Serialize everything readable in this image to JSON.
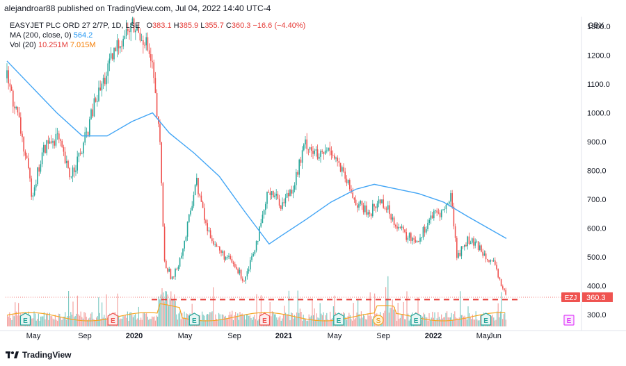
{
  "header": {
    "published": "alejandroar88 published on TradingView.com, Jul 04, 2022 14:40 UTC-4"
  },
  "legend": {
    "symbol": "EASYJET PLC ORD 27 2/7P, 1D, LSE",
    "o_label": "O",
    "o": "383.1",
    "h_label": "H",
    "h": "385.9",
    "l_label": "L",
    "l": "355.7",
    "c_label": "C",
    "c": "360.3",
    "change": "−16.6 (−4.40%)",
    "ma_label": "MA (200, close, 0)",
    "ma_value": "564.2",
    "vol_label": "Vol (20)",
    "vol_value": "10.251M",
    "vol_ma": "7.015M"
  },
  "currency": "GBX",
  "ticker_tag": "EZJ",
  "last_price": "360.3",
  "footer": {
    "brand": "TradingView"
  },
  "colors": {
    "up": "#26a69a",
    "down": "#ef5350",
    "ma": "#42a5f5",
    "volma": "#f5a623",
    "dashed": "#e53935"
  },
  "chart_data": {
    "type": "candlestick",
    "y_axis": {
      "ticks": [
        "1300.0",
        "1200.0",
        "1100.0",
        "1000.0",
        "900.0",
        "800.0",
        "700.0",
        "600.0",
        "500.0",
        "400.0",
        "300.0"
      ],
      "range": [
        237,
        1360
      ]
    },
    "x_axis": {
      "ticks": [
        "May",
        "Sep",
        "2020",
        "May",
        "Sep",
        "2021",
        "May",
        "Sep",
        "2022",
        "May",
        "Jun"
      ]
    },
    "price_path": [
      [
        "2019-03-01",
        1120
      ],
      [
        "2019-04-01",
        960
      ],
      [
        "2019-05-01",
        720
      ],
      [
        "2019-06-01",
        880
      ],
      [
        "2019-07-01",
        920
      ],
      [
        "2019-08-01",
        780
      ],
      [
        "2019-09-01",
        870
      ],
      [
        "2019-10-01",
        1030
      ],
      [
        "2019-11-01",
        1140
      ],
      [
        "2019-12-01",
        1250
      ],
      [
        "2020-01-01",
        1300
      ],
      [
        "2020-02-01",
        1260
      ],
      [
        "2020-02-20",
        1150
      ],
      [
        "2020-03-10",
        870
      ],
      [
        "2020-03-20",
        480
      ],
      [
        "2020-04-10",
        420
      ],
      [
        "2020-05-10",
        560
      ],
      [
        "2020-06-05",
        770
      ],
      [
        "2020-07-01",
        600
      ],
      [
        "2020-08-01",
        520
      ],
      [
        "2020-09-01",
        480
      ],
      [
        "2020-10-01",
        420
      ],
      [
        "2020-11-10",
        600
      ],
      [
        "2020-12-01",
        740
      ],
      [
        "2021-01-01",
        680
      ],
      [
        "2021-02-01",
        760
      ],
      [
        "2021-03-01",
        900
      ],
      [
        "2021-04-01",
        840
      ],
      [
        "2021-05-01",
        880
      ],
      [
        "2021-06-01",
        780
      ],
      [
        "2021-07-01",
        690
      ],
      [
        "2021-08-01",
        650
      ],
      [
        "2021-09-01",
        700
      ],
      [
        "2021-10-01",
        630
      ],
      [
        "2021-11-01",
        570
      ],
      [
        "2021-12-01",
        560
      ],
      [
        "2022-01-01",
        640
      ],
      [
        "2022-02-01",
        660
      ],
      [
        "2022-02-20",
        710
      ],
      [
        "2022-03-05",
        500
      ],
      [
        "2022-04-01",
        560
      ],
      [
        "2022-05-01",
        530
      ],
      [
        "2022-06-01",
        480
      ],
      [
        "2022-07-04",
        360
      ]
    ],
    "ma200": [
      [
        "2019-03-01",
        1180
      ],
      [
        "2019-05-01",
        1090
      ],
      [
        "2019-07-01",
        1000
      ],
      [
        "2019-09-01",
        920
      ],
      [
        "2019-11-01",
        920
      ],
      [
        "2020-01-01",
        970
      ],
      [
        "2020-02-20",
        1000
      ],
      [
        "2020-04-01",
        930
      ],
      [
        "2020-06-01",
        860
      ],
      [
        "2020-08-01",
        780
      ],
      [
        "2020-10-01",
        660
      ],
      [
        "2020-12-01",
        545
      ],
      [
        "2021-01-01",
        575
      ],
      [
        "2021-03-01",
        630
      ],
      [
        "2021-05-01",
        690
      ],
      [
        "2021-07-01",
        735
      ],
      [
        "2021-08-15",
        752
      ],
      [
        "2021-10-01",
        738
      ],
      [
        "2021-12-01",
        720
      ],
      [
        "2022-02-01",
        690
      ],
      [
        "2022-04-01",
        640
      ],
      [
        "2022-07-04",
        564
      ]
    ],
    "last": {
      "date": "2022-07-04",
      "open": 383.1,
      "high": 385.9,
      "low": 355.7,
      "close": 360.3
    },
    "support_level": 352,
    "events": [
      {
        "date": "2019-04-15",
        "kind": "E"
      },
      {
        "date": "2019-11-15",
        "kind": "E"
      },
      {
        "date": "2020-06-01",
        "kind": "E"
      },
      {
        "date": "2020-11-20",
        "kind": "E"
      },
      {
        "date": "2021-05-20",
        "kind": "E"
      },
      {
        "date": "2021-08-25",
        "kind": "S"
      },
      {
        "date": "2021-11-25",
        "kind": "E"
      },
      {
        "date": "2022-05-15",
        "kind": "E"
      },
      {
        "date": "2022-11-15",
        "kind": "E-future"
      }
    ]
  }
}
